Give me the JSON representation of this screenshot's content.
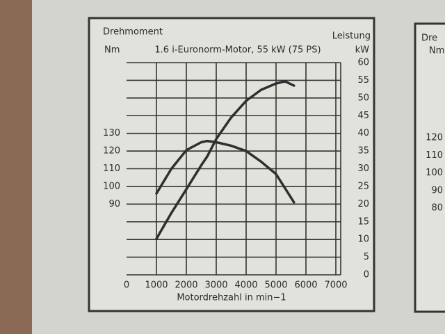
{
  "chart_data": [
    {
      "type": "line",
      "title": "1.6 i-Euronorm-Motor, 55 kW (75 PS)",
      "y_label": "Drehmoment",
      "y_unit": "Nm",
      "y2_label": "Leistung",
      "y2_unit": "kW",
      "x_label": "Motordrehzahl in min−1",
      "x": [
        1000,
        1500,
        2000,
        2500,
        2700,
        3000,
        3500,
        4000,
        4500,
        5000,
        5300,
        5600
      ],
      "series": [
        {
          "color": "#2f2f2f",
          "values": [
            96,
            110,
            120.5,
            125,
            125.7,
            125,
            123,
            120,
            114,
            107,
            99,
            91
          ]
        },
        {
          "color": "#2f2f2f",
          "axis": "y2",
          "values": [
            10.2,
            17.5,
            24.2,
            31,
            33.5,
            38.4,
            44.5,
            49.2,
            52.3,
            54.1,
            54.7,
            53.5
          ]
        }
      ],
      "xlim": [
        0,
        7000
      ],
      "xticks": [
        0,
        1000,
        2000,
        3000,
        4000,
        5000,
        6000,
        7000
      ],
      "ylim": [
        50,
        170
      ],
      "yticks": [
        90,
        100,
        110,
        120,
        130
      ],
      "y2lim": [
        0,
        60
      ],
      "y2ticks": [
        0,
        5,
        10,
        15,
        20,
        25,
        30,
        35,
        40,
        45,
        50,
        55,
        60
      ],
      "grid": true
    },
    {
      "type": "line",
      "y_label": "Dre",
      "y_unit": "Nm",
      "ylim": [
        40,
        160
      ],
      "yticks": [
        80,
        90,
        100,
        110,
        120
      ]
    }
  ]
}
